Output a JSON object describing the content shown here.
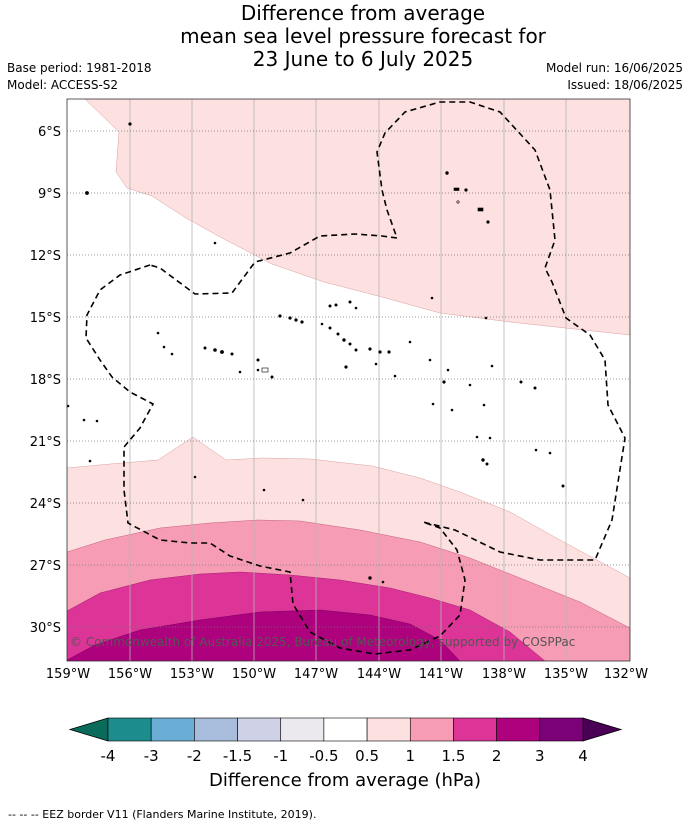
{
  "title_lines": [
    "Difference from average",
    "mean sea level pressure forecast for",
    "23 June to 6 July 2025"
  ],
  "base_period": "Base period: 1981-2018",
  "model": "Model: ACCESS-S2",
  "model_run": "Model run: 16/06/2025",
  "issued": "Issued: 18/06/2025",
  "copyright": "© Commonwealth of Australia 2025, Bureau of Meteorology, supported by COSPPac",
  "lat_labels": [
    "6°S",
    "9°S",
    "12°S",
    "15°S",
    "18°S",
    "21°S",
    "24°S",
    "27°S",
    "30°S"
  ],
  "lon_labels": [
    "159°W",
    "156°W",
    "153°W",
    "150°W",
    "147°W",
    "144°W",
    "141°W",
    "138°W",
    "135°W",
    "132°W"
  ],
  "colorbar": {
    "ticks": [
      "-4",
      "-3",
      "-2",
      "-1.5",
      "-1",
      "-0.5",
      "0.5",
      "1",
      "1.5",
      "2",
      "3",
      "4"
    ],
    "colors": [
      "#1c8c8c",
      "#6aaed6",
      "#a8bcdc",
      "#cfd1e6",
      "#ebe8ee",
      "#ffffff",
      "#fde0e0",
      "#f79cb5",
      "#dd3497",
      "#ae017e",
      "#7a0177"
    ],
    "under_color": "#0a6b5a",
    "over_color": "#4a0055",
    "title": "Difference from average (hPa)"
  },
  "footer": "--  --  -- EEZ border V11 (Flanders Marine Institute, 2019).",
  "colors": {
    "level_0_5": "#fde0e0",
    "level_1": "#f79cb5",
    "level_1_5": "#dd3497",
    "level_2": "#ae017e"
  }
}
